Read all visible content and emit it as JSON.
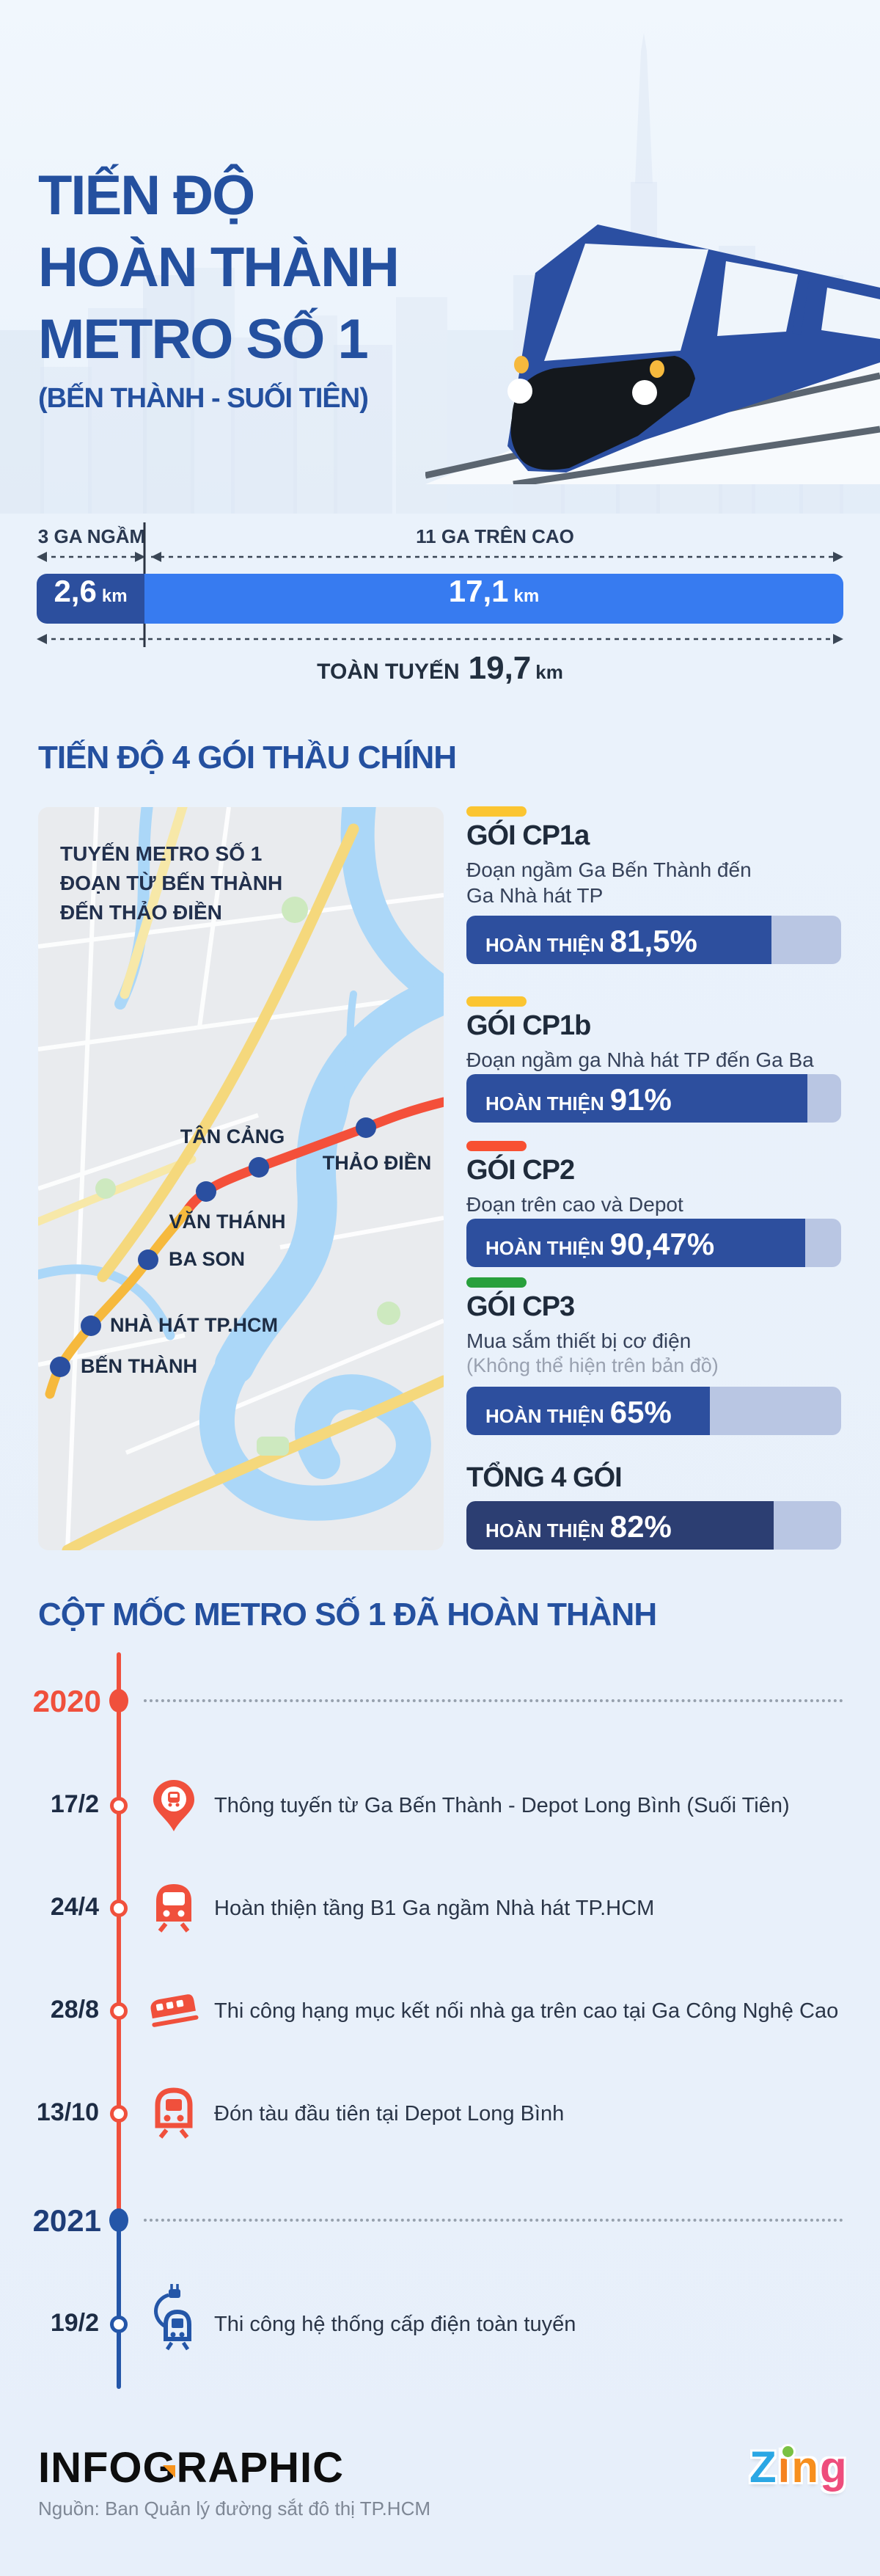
{
  "header": {
    "title_line1": "TIẾN ĐỘ",
    "title_line2": "HOÀN THÀNH",
    "title_line3": "METRO SỐ 1",
    "subtitle": "(BẾN THÀNH - SUỐI TIÊN)"
  },
  "overview": {
    "underground": {
      "label": "3 GA NGẦM",
      "value": "2,6",
      "unit": "km"
    },
    "elevated": {
      "label": "11 GA TRÊN CAO",
      "value": "17,1",
      "unit": "km"
    },
    "total": {
      "label": "TOÀN TUYẾN",
      "value": "19,7",
      "unit": "km"
    }
  },
  "packages": {
    "heading": "TIẾN ĐỘ 4 GÓI THẦU CHÍNH",
    "map": {
      "caption": "TUYẾN METRO SỐ 1\nĐOẠN TỪ BẾN THÀNH\nĐẾN THẢO ĐIỀN",
      "stations": [
        {
          "name": "TÂN CẢNG"
        },
        {
          "name": "THẢO ĐIỀN"
        },
        {
          "name": "VĂN THÁNH"
        },
        {
          "name": "BA SON"
        },
        {
          "name": "NHÀ HÁT TP.HCM"
        },
        {
          "name": "BẾN THÀNH"
        }
      ]
    },
    "items": [
      {
        "title": "GÓI CP1a",
        "desc": "Đoạn ngầm Ga Bến Thành  đến\nGa Nhà hát TP",
        "progress_label": "HOÀN THIỆN",
        "value": "81,5%",
        "pct": 81.5,
        "tick_color": "#fbc531",
        "fill_color": "#2d4f9e"
      },
      {
        "title": "GÓI CP1b",
        "desc": "Đoạn ngầm ga Nhà hát TP đến Ga Ba Son",
        "progress_label": "HOÀN THIỆN",
        "value": "91%",
        "pct": 91,
        "tick_color": "#fbc531",
        "fill_color": "#2d4f9e"
      },
      {
        "title": "GÓI CP2",
        "desc": "Đoạn trên cao và Depot",
        "progress_label": "HOÀN THIỆN",
        "value": "90,47%",
        "pct": 90.47,
        "tick_color": "#f85032",
        "fill_color": "#2d4f9e"
      },
      {
        "title": "GÓI CP3",
        "desc": "Mua sắm thiết bị cơ điện",
        "note": "(Không thể hiện trên bản đồ)",
        "progress_label": "HOÀN THIỆN",
        "value": "65%",
        "pct": 65,
        "tick_color": "#28a03c",
        "fill_color": "#2d4f9e"
      }
    ],
    "total": {
      "title": "TỔNG 4 GÓI",
      "progress_label": "HOÀN THIỆN",
      "value": "82%",
      "pct": 82,
      "fill_color": "#2c3e72"
    }
  },
  "timeline": {
    "heading": "CỘT MỐC METRO SỐ 1 ĐÃ HOÀN THÀNH",
    "y2020": "2020",
    "y2021": "2021",
    "events": [
      {
        "date": "17/2",
        "icon": "pin-train",
        "text": "Thông tuyến từ Ga Bến Thành - Depot Long Bình (Suối Tiên)"
      },
      {
        "date": "24/4",
        "icon": "train-front",
        "text": "Hoàn thiện tầng B1 Ga ngầm Nhà hát TP.HCM"
      },
      {
        "date": "28/8",
        "icon": "train-side",
        "text": "Thi công hạng mục kết nối nhà ga trên cao tại Ga Công Nghệ Cao"
      },
      {
        "date": "13/10",
        "icon": "train-front",
        "text": "Đón tàu đầu tiên tại Depot Long Bình"
      },
      {
        "date": "19/2",
        "icon": "train-electric",
        "text": "Thi công hệ thống cấp điện toàn tuyến"
      }
    ]
  },
  "footer": {
    "brand_prefix": "INFO",
    "brand_g": "G",
    "brand_suffix": "RAPHIC",
    "source": "Nguồn: Ban Quản lý đường sắt đô thị TP.HCM",
    "zing": {
      "z": "Z",
      "i": "i",
      "n": "n",
      "g": "g"
    }
  },
  "colors": {
    "heading_blue": "#24509f",
    "bar_fill": "#2d4f9e",
    "bar_total": "#2c3e72",
    "track": "#b9c6e3",
    "segment_dark": "#2c4f9e",
    "segment_bright": "#377bf0",
    "timeline_red": "#f0503c",
    "timeline_blue": "#2456a8",
    "metro_red": "#f4503a",
    "metro_yellow": "#f6b93d",
    "station_dot": "#2a4fa0"
  },
  "chart_data": [
    {
      "type": "bar",
      "title": "TIẾN ĐỘ 4 GÓI THẦU CHÍNH",
      "categories": [
        "GÓI CP1a",
        "GÓI CP1b",
        "GÓI CP2",
        "GÓI CP3",
        "TỔNG 4 GÓI"
      ],
      "values": [
        81.5,
        91,
        90.47,
        65,
        82
      ],
      "xlabel": "",
      "ylabel": "HOÀN THIỆN (%)",
      "ylim": [
        0,
        100
      ],
      "annotations": [
        "81,5%",
        "91%",
        "90,47%",
        "65%",
        "82%"
      ]
    },
    {
      "type": "bar",
      "title": "TOÀN TUYẾN 19,7 km",
      "categories": [
        "3 GA NGẦM",
        "11 GA TRÊN CAO",
        "TOÀN TUYẾN"
      ],
      "values": [
        2.6,
        17.1,
        19.7
      ],
      "xlabel": "",
      "ylabel": "km",
      "ylim": [
        0,
        19.7
      ]
    },
    {
      "type": "table",
      "title": "CỘT MỐC METRO SỐ 1 ĐÃ HOÀN THÀNH",
      "categories": [
        "2020 17/2",
        "2020 24/4",
        "2020 28/8",
        "2020 13/10",
        "2021 19/2"
      ],
      "values": [
        "Thông tuyến từ Ga Bến Thành - Depot Long Bình (Suối Tiên)",
        "Hoàn thiện tầng B1 Ga ngầm Nhà hát TP.HCM",
        "Thi công hạng mục kết nối nhà ga trên cao tại Ga Công Nghệ Cao",
        "Đón tàu đầu tiên tại Depot Long Bình",
        "Thi công hệ thống cấp điện toàn tuyến"
      ]
    }
  ]
}
